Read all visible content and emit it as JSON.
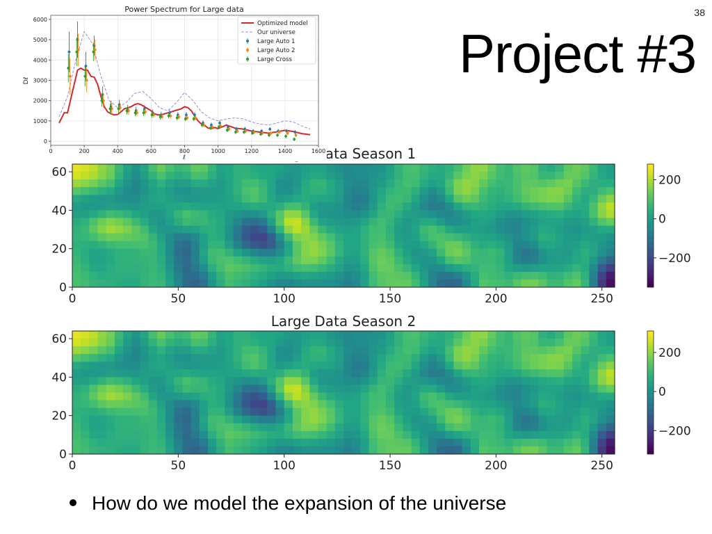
{
  "slide": {
    "number": "38",
    "title": "Project #3",
    "bullet": "How do we model the expansion of the universe"
  },
  "chart_data": [
    {
      "type": "line",
      "title": "Power Spectrum for Large data",
      "xlabel": "ℓ",
      "ylabel": "Dℓ",
      "xlim": [
        0,
        1600
      ],
      "ylim": [
        -200,
        6200
      ],
      "xticks": [
        0,
        200,
        400,
        600,
        800,
        1000,
        1200,
        1400,
        1600
      ],
      "yticks": [
        0,
        1000,
        2000,
        3000,
        4000,
        5000,
        6000
      ],
      "grid": true,
      "legend_position": "top-right",
      "series": [
        {
          "name": "Optimized model",
          "style": "line",
          "color": "#d62728",
          "x": [
            50,
            80,
            100,
            120,
            140,
            160,
            180,
            200,
            220,
            240,
            260,
            280,
            300,
            320,
            340,
            360,
            380,
            400,
            420,
            440,
            460,
            480,
            500,
            520,
            540,
            560,
            580,
            600,
            620,
            640,
            660,
            680,
            700,
            720,
            740,
            760,
            780,
            800,
            820,
            840,
            860,
            880,
            900,
            920,
            940,
            960,
            980,
            1000,
            1050,
            1100,
            1150,
            1200,
            1250,
            1300,
            1350,
            1400,
            1450,
            1500,
            1550
          ],
          "y": [
            900,
            1400,
            1400,
            2100,
            2800,
            3500,
            3600,
            3500,
            3500,
            3200,
            3150,
            2800,
            2200,
            1700,
            1450,
            1350,
            1300,
            1320,
            1450,
            1600,
            1650,
            1700,
            1800,
            1850,
            1800,
            1700,
            1600,
            1500,
            1350,
            1300,
            1300,
            1350,
            1400,
            1450,
            1500,
            1550,
            1600,
            1700,
            1650,
            1500,
            1250,
            1000,
            850,
            780,
            650,
            620,
            680,
            620,
            800,
            650,
            600,
            500,
            450,
            400,
            460,
            540,
            480,
            380,
            320
          ]
        },
        {
          "name": "Our universe",
          "style": "dashed",
          "color": "#9a8fd6",
          "x": [
            50,
            100,
            150,
            200,
            250,
            300,
            350,
            400,
            450,
            500,
            550,
            600,
            650,
            700,
            750,
            800,
            850,
            900,
            950,
            1000,
            1050,
            1100,
            1150,
            1200,
            1250,
            1300,
            1350,
            1400,
            1450,
            1500,
            1550
          ],
          "y": [
            1200,
            2200,
            4000,
            5400,
            4800,
            3200,
            2000,
            1650,
            1900,
            2350,
            2450,
            2100,
            1650,
            1500,
            1900,
            2400,
            2000,
            1450,
            1150,
            1000,
            1100,
            1150,
            1100,
            950,
            850,
            800,
            900,
            1000,
            950,
            750,
            600
          ]
        },
        {
          "name": "Large Auto 1",
          "style": "errorbar",
          "color": "#1f77b4",
          "x": [
            110,
            160,
            210,
            260,
            310,
            360,
            410,
            460,
            510,
            560,
            610,
            660,
            710,
            760,
            810,
            860,
            910,
            960,
            1010,
            1060,
            1110,
            1160,
            1210,
            1260,
            1310,
            1360,
            1410,
            1460
          ],
          "y": [
            4400,
            5000,
            3700,
            4700,
            2300,
            1700,
            1800,
            1600,
            1500,
            1600,
            1400,
            1300,
            1400,
            1300,
            1300,
            1300,
            900,
            800,
            900,
            700,
            600,
            600,
            500,
            500,
            600,
            500,
            500,
            450
          ],
          "err": [
            1000,
            900,
            700,
            500,
            400,
            300,
            250,
            200,
            200,
            180,
            160,
            150,
            150,
            140,
            140,
            130,
            130,
            120,
            120,
            110,
            110,
            110,
            100,
            100,
            100,
            100,
            100,
            100
          ]
        },
        {
          "name": "Large Auto 2",
          "style": "errorbar",
          "color": "#ff7f0e",
          "x": [
            115,
            165,
            215,
            265,
            315,
            365,
            415,
            465,
            515,
            565,
            615,
            665,
            715,
            765,
            815,
            865,
            915,
            965,
            1015,
            1065,
            1115,
            1165,
            1215,
            1265,
            1315,
            1365,
            1415,
            1465
          ],
          "y": [
            3200,
            4500,
            3000,
            4500,
            2000,
            1600,
            1650,
            1500,
            1400,
            1450,
            1300,
            1200,
            1250,
            1200,
            1150,
            1150,
            800,
            700,
            750,
            600,
            500,
            500,
            450,
            400,
            400,
            450,
            400,
            300
          ],
          "err": [
            900,
            800,
            600,
            500,
            350,
            280,
            230,
            200,
            180,
            170,
            150,
            140,
            140,
            130,
            130,
            120,
            120,
            110,
            110,
            100,
            100,
            100,
            100,
            90,
            90,
            90,
            90,
            90
          ]
        },
        {
          "name": "Large Cross",
          "style": "errorbar",
          "color": "#2ca02c",
          "x": [
            105,
            155,
            205,
            255,
            305,
            355,
            405,
            455,
            505,
            555,
            605,
            655,
            705,
            755,
            805,
            855,
            905,
            955,
            1005,
            1055,
            1105,
            1155,
            1205,
            1255,
            1305,
            1355,
            1405,
            1455
          ],
          "y": [
            3600,
            4400,
            3200,
            4400,
            2000,
            1600,
            1600,
            1500,
            1400,
            1400,
            1300,
            1200,
            1250,
            1150,
            1100,
            1100,
            800,
            650,
            700,
            550,
            450,
            450,
            400,
            350,
            300,
            300,
            250,
            100
          ],
          "err": [
            700,
            700,
            500,
            450,
            300,
            250,
            200,
            180,
            170,
            160,
            150,
            130,
            130,
            120,
            120,
            110,
            110,
            100,
            100,
            100,
            90,
            90,
            90,
            90,
            90,
            90,
            90,
            90
          ]
        }
      ]
    },
    {
      "type": "heatmap",
      "title": "Large Data Season 1",
      "xlim": [
        0,
        256
      ],
      "ylim": [
        0,
        64
      ],
      "xticks": [
        0,
        50,
        100,
        150,
        200,
        250
      ],
      "yticks": [
        0,
        20,
        40,
        60
      ],
      "colorbar": {
        "ticks": [
          -200,
          0,
          200
        ],
        "range": [
          -350,
          280
        ],
        "colormap": "viridis"
      },
      "grid": false,
      "seed": 7
    },
    {
      "type": "heatmap",
      "title": "Large Data Season 2",
      "xlim": [
        0,
        256
      ],
      "ylim": [
        0,
        64
      ],
      "xticks": [
        0,
        50,
        100,
        150,
        200,
        250
      ],
      "yticks": [
        0,
        20,
        40,
        60
      ],
      "colorbar": {
        "ticks": [
          -200,
          0,
          200
        ],
        "range": [
          -320,
          310
        ],
        "colormap": "viridis"
      },
      "grid": false,
      "seed": 7
    }
  ]
}
